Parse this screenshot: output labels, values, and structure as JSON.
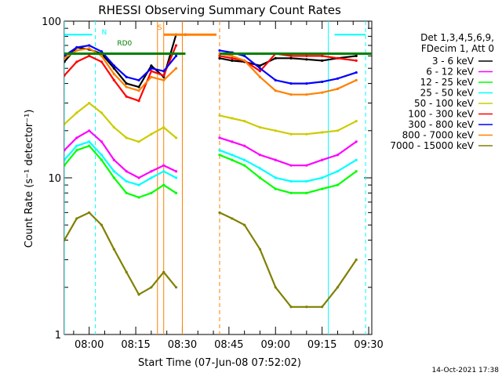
{
  "chart_data": {
    "type": "line",
    "title": "RHESSI Observing Summary Count Rates",
    "xlabel": "Start Time (07-Jun-08 07:52:02)",
    "ylabel": "Count Rate (s⁻¹ detector⁻¹)",
    "yscale": "log",
    "ylim": [
      1,
      100
    ],
    "x_range_minutes": [
      "07:52",
      "09:31"
    ],
    "x_ticks": [
      "08:00",
      "08:15",
      "08:30",
      "08:45",
      "09:00",
      "09:15",
      "09:30"
    ],
    "y_ticks": [
      "1",
      "10",
      "100"
    ],
    "legend_position": "right",
    "legend_header": [
      "Det 1,3,4,5,6,9,",
      "FDecim 1, Att 0"
    ],
    "annotations": [
      "RD0",
      "N",
      "S"
    ],
    "footer_timestamp": "14-Oct-2021 17:38",
    "data_gap": [
      "08:31",
      "08:42"
    ],
    "series": [
      {
        "name": "3 - 6 keV",
        "color": "#000000",
        "points": [
          [
            "07:52",
            55
          ],
          [
            "07:56",
            68
          ],
          [
            "08:00",
            66
          ],
          [
            "08:04",
            62
          ],
          [
            "08:08",
            50
          ],
          [
            "08:12",
            40
          ],
          [
            "08:16",
            38
          ],
          [
            "08:20",
            52
          ],
          [
            "08:24",
            44
          ],
          [
            "08:28",
            82
          ],
          [
            "08:31",
            82
          ],
          [
            "08:42",
            58
          ],
          [
            "08:46",
            56
          ],
          [
            "08:50",
            55
          ],
          [
            "08:55",
            52
          ],
          [
            "09:00",
            58
          ],
          [
            "09:05",
            58
          ],
          [
            "09:10",
            57
          ],
          [
            "09:15",
            56
          ],
          [
            "09:20",
            58
          ],
          [
            "09:26",
            60
          ]
        ]
      },
      {
        "name": "6 - 12 keV",
        "color": "#ff00ff",
        "points": [
          [
            "07:52",
            15
          ],
          [
            "07:56",
            18
          ],
          [
            "08:00",
            20
          ],
          [
            "08:04",
            17
          ],
          [
            "08:08",
            13
          ],
          [
            "08:12",
            11
          ],
          [
            "08:16",
            10
          ],
          [
            "08:20",
            11
          ],
          [
            "08:24",
            12
          ],
          [
            "08:28",
            11
          ],
          [
            "08:42",
            18
          ],
          [
            "08:46",
            17
          ],
          [
            "08:50",
            16
          ],
          [
            "08:55",
            14
          ],
          [
            "09:00",
            13
          ],
          [
            "09:05",
            12
          ],
          [
            "09:10",
            12
          ],
          [
            "09:15",
            13
          ],
          [
            "09:20",
            14
          ],
          [
            "09:26",
            17
          ]
        ]
      },
      {
        "name": "12 - 25 keV",
        "color": "#00ff00",
        "points": [
          [
            "07:52",
            12
          ],
          [
            "07:56",
            15
          ],
          [
            "08:00",
            16
          ],
          [
            "08:04",
            13
          ],
          [
            "08:08",
            10
          ],
          [
            "08:12",
            8
          ],
          [
            "08:16",
            7.5
          ],
          [
            "08:20",
            8
          ],
          [
            "08:24",
            9
          ],
          [
            "08:28",
            8
          ],
          [
            "08:42",
            14
          ],
          [
            "08:46",
            13
          ],
          [
            "08:50",
            12
          ],
          [
            "08:55",
            10
          ],
          [
            "09:00",
            8.5
          ],
          [
            "09:05",
            8
          ],
          [
            "09:10",
            8
          ],
          [
            "09:15",
            8.5
          ],
          [
            "09:20",
            9
          ],
          [
            "09:26",
            11
          ]
        ]
      },
      {
        "name": "25 - 50 keV",
        "color": "#00ffff",
        "points": [
          [
            "07:52",
            13
          ],
          [
            "07:56",
            16
          ],
          [
            "08:00",
            17
          ],
          [
            "08:04",
            14
          ],
          [
            "08:08",
            11
          ],
          [
            "08:12",
            9.5
          ],
          [
            "08:16",
            9
          ],
          [
            "08:20",
            10
          ],
          [
            "08:24",
            11
          ],
          [
            "08:28",
            10
          ],
          [
            "08:42",
            15
          ],
          [
            "08:46",
            14
          ],
          [
            "08:50",
            13
          ],
          [
            "08:55",
            11.5
          ],
          [
            "09:00",
            10
          ],
          [
            "09:05",
            9.5
          ],
          [
            "09:10",
            9.5
          ],
          [
            "09:15",
            10
          ],
          [
            "09:20",
            11
          ],
          [
            "09:26",
            13
          ]
        ]
      },
      {
        "name": "50 - 100 keV",
        "color": "#cccc00",
        "points": [
          [
            "07:52",
            22
          ],
          [
            "07:56",
            26
          ],
          [
            "08:00",
            30
          ],
          [
            "08:04",
            26
          ],
          [
            "08:08",
            21
          ],
          [
            "08:12",
            18
          ],
          [
            "08:16",
            17
          ],
          [
            "08:20",
            19
          ],
          [
            "08:24",
            21
          ],
          [
            "08:28",
            18
          ],
          [
            "08:42",
            25
          ],
          [
            "08:46",
            24
          ],
          [
            "08:50",
            23
          ],
          [
            "08:55",
            21
          ],
          [
            "09:00",
            20
          ],
          [
            "09:05",
            19
          ],
          [
            "09:10",
            19
          ],
          [
            "09:15",
            19.5
          ],
          [
            "09:20",
            20
          ],
          [
            "09:26",
            23
          ]
        ]
      },
      {
        "name": "100 - 300 keV",
        "color": "#ff0000",
        "points": [
          [
            "07:52",
            45
          ],
          [
            "07:56",
            55
          ],
          [
            "08:00",
            60
          ],
          [
            "08:04",
            55
          ],
          [
            "08:08",
            42
          ],
          [
            "08:12",
            33
          ],
          [
            "08:16",
            31
          ],
          [
            "08:20",
            48
          ],
          [
            "08:24",
            45
          ],
          [
            "08:28",
            70
          ],
          [
            "08:42",
            60
          ],
          [
            "08:46",
            58
          ],
          [
            "08:50",
            56
          ],
          [
            "08:55",
            48
          ],
          [
            "09:00",
            62
          ],
          [
            "09:05",
            60
          ],
          [
            "09:10",
            60
          ],
          [
            "09:15",
            60
          ],
          [
            "09:20",
            58
          ],
          [
            "09:26",
            56
          ]
        ]
      },
      {
        "name": "300 - 800 keV",
        "color": "#0000ff",
        "points": [
          [
            "07:52",
            60
          ],
          [
            "07:56",
            68
          ],
          [
            "08:00",
            70
          ],
          [
            "08:04",
            64
          ],
          [
            "08:08",
            52
          ],
          [
            "08:12",
            44
          ],
          [
            "08:16",
            42
          ],
          [
            "08:20",
            50
          ],
          [
            "08:24",
            48
          ],
          [
            "08:28",
            60
          ],
          [
            "08:42",
            65
          ],
          [
            "08:46",
            63
          ],
          [
            "08:50",
            60
          ],
          [
            "08:55",
            50
          ],
          [
            "09:00",
            42
          ],
          [
            "09:05",
            40
          ],
          [
            "09:10",
            40
          ],
          [
            "09:15",
            41
          ],
          [
            "09:20",
            43
          ],
          [
            "09:26",
            47
          ]
        ]
      },
      {
        "name": "800 - 7000 keV",
        "color": "#ff8000",
        "points": [
          [
            "07:52",
            58
          ],
          [
            "07:56",
            65
          ],
          [
            "08:00",
            67
          ],
          [
            "08:04",
            60
          ],
          [
            "08:08",
            46
          ],
          [
            "08:12",
            38
          ],
          [
            "08:16",
            36
          ],
          [
            "08:20",
            44
          ],
          [
            "08:24",
            42
          ],
          [
            "08:28",
            50
          ],
          [
            "08:42",
            62
          ],
          [
            "08:46",
            60
          ],
          [
            "08:50",
            56
          ],
          [
            "08:55",
            44
          ],
          [
            "09:00",
            36
          ],
          [
            "09:05",
            34
          ],
          [
            "09:10",
            34
          ],
          [
            "09:15",
            35
          ],
          [
            "09:20",
            37
          ],
          [
            "09:26",
            42
          ]
        ]
      },
      {
        "name": "7000 - 15000 keV",
        "color": "#808000",
        "points": [
          [
            "07:52",
            4
          ],
          [
            "07:56",
            5.5
          ],
          [
            "08:00",
            6
          ],
          [
            "08:04",
            5
          ],
          [
            "08:08",
            3.5
          ],
          [
            "08:12",
            2.5
          ],
          [
            "08:16",
            1.8
          ],
          [
            "08:20",
            2
          ],
          [
            "08:24",
            2.5
          ],
          [
            "08:28",
            2
          ],
          [
            "08:42",
            6
          ],
          [
            "08:46",
            5.5
          ],
          [
            "08:50",
            5
          ],
          [
            "08:55",
            3.5
          ],
          [
            "09:00",
            2
          ],
          [
            "09:05",
            1.5
          ],
          [
            "09:10",
            1.5
          ],
          [
            "09:15",
            1.5
          ],
          [
            "09:20",
            2
          ],
          [
            "09:26",
            3
          ]
        ]
      }
    ],
    "overlays": [
      {
        "label": "attenuator",
        "color": "#008000",
        "value": 62
      },
      {
        "label": "saa",
        "color": "#00ffff",
        "value": 82
      },
      {
        "label": "orange-flag",
        "color": "#ff8000",
        "value": 82
      }
    ],
    "vertical_markers": [
      {
        "time": "07:52",
        "color": "#00ffff",
        "style": "solid"
      },
      {
        "time": "08:02",
        "color": "#00ffff",
        "style": "dashed"
      },
      {
        "time": "08:22",
        "color": "#ff8000",
        "style": "solid"
      },
      {
        "time": "08:24",
        "color": "#ff8000",
        "style": "solid"
      },
      {
        "time": "08:30",
        "color": "#ff8000",
        "style": "solid"
      },
      {
        "time": "08:42",
        "color": "#ff8000",
        "style": "dashed"
      },
      {
        "time": "09:17",
        "color": "#00ffff",
        "style": "solid"
      },
      {
        "time": "09:29",
        "color": "#00ffff",
        "style": "dashed"
      }
    ]
  }
}
